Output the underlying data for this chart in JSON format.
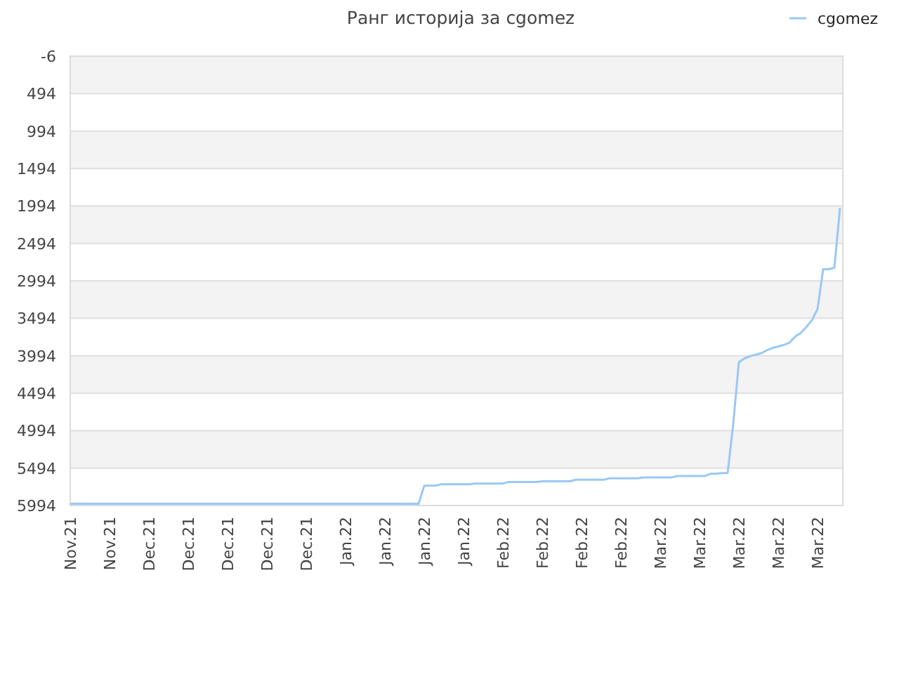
{
  "chart_data": {
    "type": "line",
    "title": "Ранг историја за cgomez",
    "grid": "y",
    "legend": "top right",
    "marker": "none",
    "categories": [
      "Nov.21",
      null,
      null,
      null,
      null,
      null,
      null,
      "Nov.21",
      null,
      null,
      null,
      null,
      null,
      null,
      "Dec.21",
      null,
      null,
      null,
      null,
      null,
      null,
      "Dec.21",
      null,
      null,
      null,
      null,
      null,
      null,
      "Dec.21",
      null,
      null,
      null,
      null,
      null,
      null,
      "Dec.21",
      null,
      null,
      null,
      null,
      null,
      null,
      "Dec.21",
      null,
      null,
      null,
      null,
      null,
      null,
      "Jan.22",
      null,
      null,
      null,
      null,
      null,
      null,
      "Jan.22",
      null,
      null,
      null,
      null,
      null,
      null,
      "Jan.22",
      null,
      null,
      null,
      null,
      null,
      null,
      "Jan.22",
      null,
      null,
      null,
      null,
      null,
      null,
      "Feb.22",
      null,
      null,
      null,
      null,
      null,
      null,
      "Feb.22",
      null,
      null,
      null,
      null,
      null,
      null,
      "Feb.22",
      null,
      null,
      null,
      null,
      null,
      null,
      "Feb.22",
      null,
      null,
      null,
      null,
      null,
      null,
      "Mar.22",
      null,
      null,
      null,
      null,
      null,
      null,
      "Mar.22",
      null,
      null,
      null,
      null,
      null,
      null,
      "Mar.22",
      null,
      null,
      null,
      null,
      null,
      null,
      "Mar.22",
      null,
      null,
      null,
      null,
      null,
      null,
      "Mar.22",
      null,
      null,
      null,
      null
    ],
    "ylim": [
      5994,
      -6
    ],
    "yticks": [
      -6,
      494,
      994,
      1494,
      1994,
      2494,
      2994,
      3494,
      3994,
      4494,
      4994,
      5494,
      5994
    ],
    "series": [
      {
        "name": "cgomez",
        "color": "#99c8f5",
        "values": [
          5970,
          5970,
          5970,
          5970,
          5970,
          5970,
          5970,
          5970,
          5970,
          5970,
          5970,
          5970,
          5970,
          5970,
          5970,
          5970,
          5970,
          5970,
          5970,
          5970,
          5970,
          5970,
          5970,
          5970,
          5970,
          5970,
          5970,
          5970,
          5970,
          5970,
          5970,
          5970,
          5970,
          5970,
          5970,
          5970,
          5970,
          5970,
          5970,
          5970,
          5970,
          5970,
          5970,
          5970,
          5970,
          5970,
          5970,
          5970,
          5970,
          5970,
          5970,
          5970,
          5970,
          5970,
          5970,
          5970,
          5970,
          5970,
          5970,
          5970,
          5970,
          5970,
          5970,
          5730,
          5730,
          5730,
          5710,
          5710,
          5710,
          5710,
          5710,
          5710,
          5700,
          5700,
          5700,
          5700,
          5700,
          5700,
          5680,
          5680,
          5680,
          5680,
          5680,
          5680,
          5670,
          5670,
          5670,
          5670,
          5670,
          5670,
          5650,
          5650,
          5650,
          5650,
          5650,
          5650,
          5630,
          5630,
          5630,
          5630,
          5630,
          5630,
          5620,
          5620,
          5620,
          5620,
          5620,
          5620,
          5600,
          5600,
          5600,
          5600,
          5600,
          5600,
          5570,
          5570,
          5560,
          5560,
          4900,
          4080,
          4030,
          4000,
          3980,
          3960,
          3920,
          3890,
          3870,
          3850,
          3820,
          3740,
          3690,
          3610,
          3520,
          3370,
          2840,
          2840,
          2820,
          2020
        ]
      }
    ]
  }
}
